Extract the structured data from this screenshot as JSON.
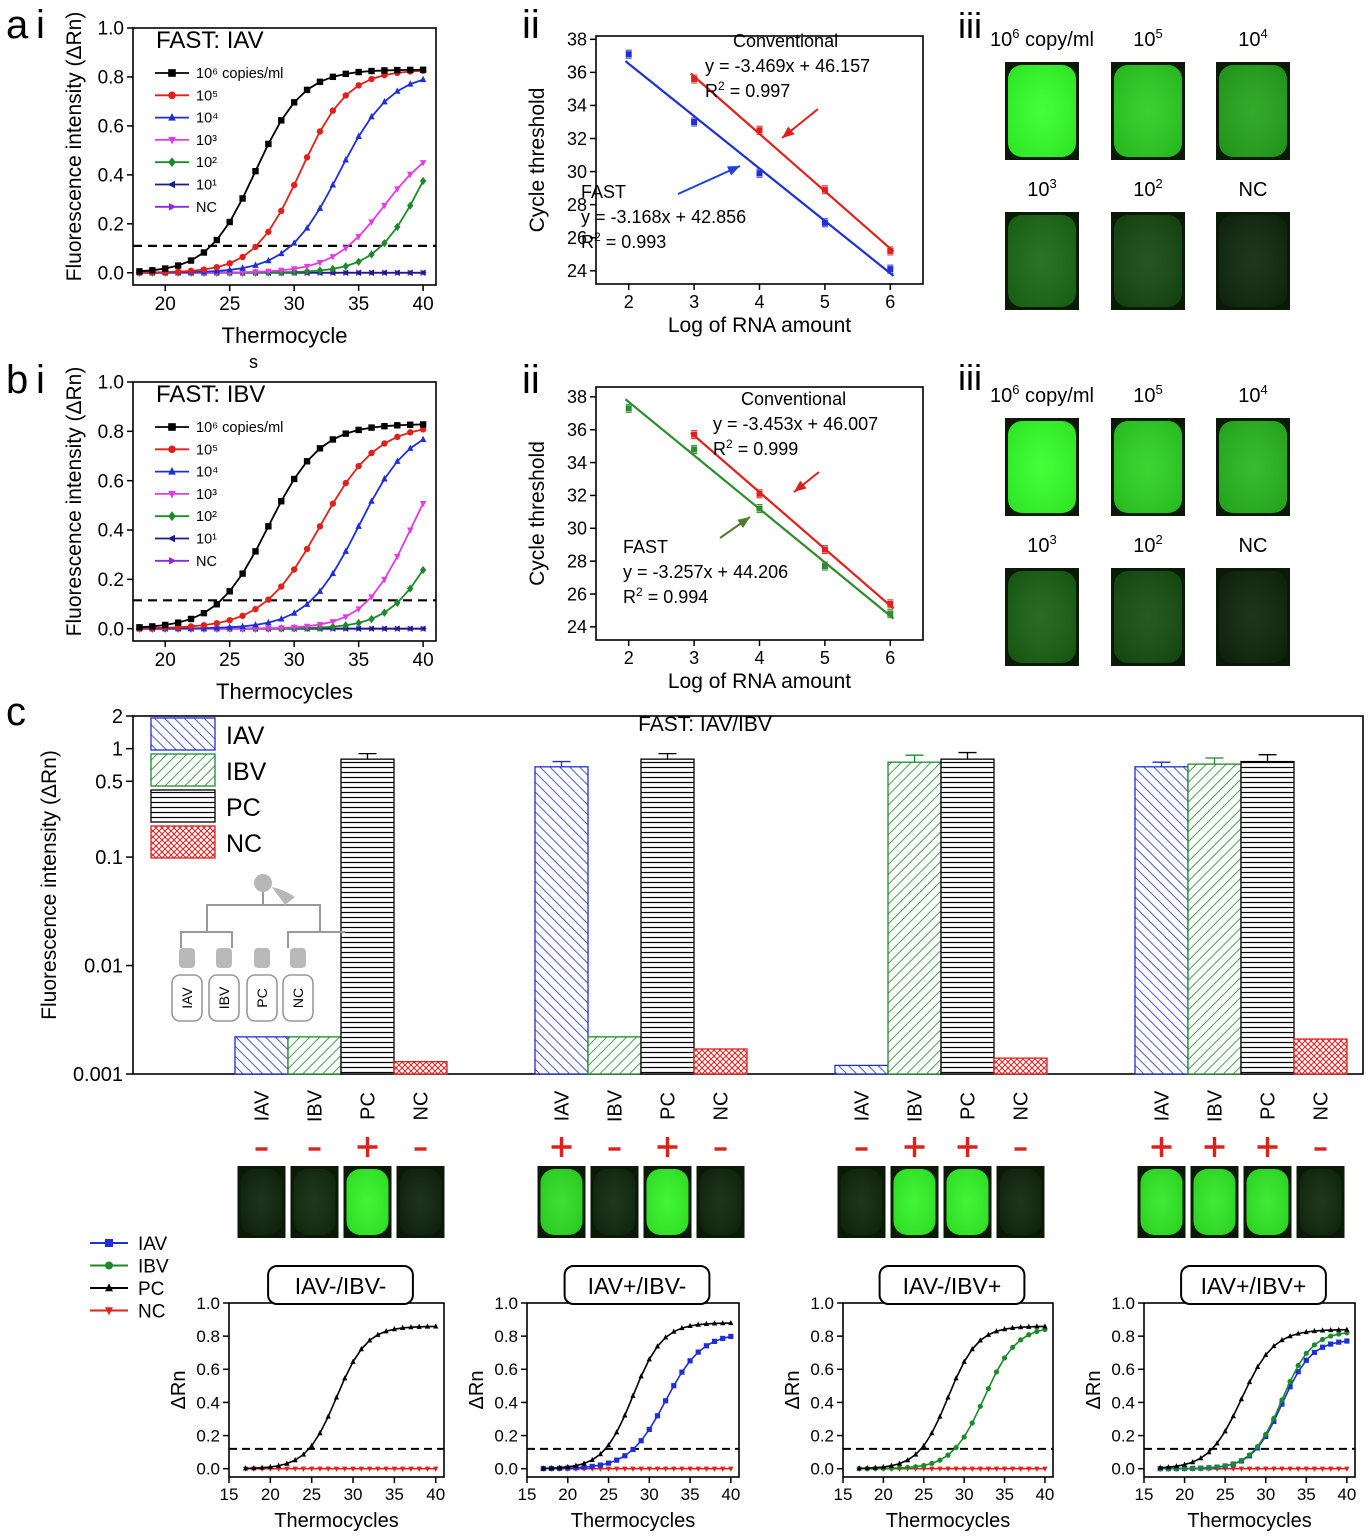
{
  "panel_labels": {
    "a": "a",
    "b": "b",
    "c": "c",
    "i": "i",
    "ii": "ii",
    "iii": "iii"
  },
  "stray_char": "s",
  "colors": {
    "black": "#000000",
    "red": "#e0201b",
    "blue": "#1f2fd6",
    "magenta": "#e23be3",
    "green": "#1d8a2a",
    "navy": "#1c1c8c",
    "purple": "#8a2be2",
    "trend_green": "#2e8b2e",
    "glow": "#39ff2a",
    "hatch_red": "#e0201b",
    "arrow_red": "#e0201b",
    "arrow_blue": "#1f40e0",
    "arrow_olive": "#557a2a"
  },
  "chart_data": [
    {
      "id": "a_i",
      "type": "line",
      "title": "FAST: IAV",
      "xlabel": "Thermocycle",
      "ylabel": "Fluorescence intensity (ΔRn)",
      "xlim": [
        17.5,
        41
      ],
      "ylim": [
        -0.05,
        1.0
      ],
      "xticks": [
        20,
        25,
        30,
        35,
        40
      ],
      "yticks": [
        0.0,
        0.2,
        0.4,
        0.6,
        0.8,
        1.0
      ],
      "ytick_labels": [
        "0.0",
        "0.2",
        "0.4",
        "0.6",
        "0.8",
        "1.0"
      ],
      "threshold": 0.11,
      "series": [
        {
          "name": "10⁶ copies/ml",
          "color": "#000000",
          "marker": "square",
          "max": 0.83,
          "ct": 27.0,
          "k": 0.55
        },
        {
          "name": "10⁵",
          "color": "#e0201b",
          "marker": "circle",
          "max": 0.83,
          "ct": 30.5,
          "k": 0.55
        },
        {
          "name": "10⁴",
          "color": "#1f2fd6",
          "marker": "triangle-up",
          "max": 0.82,
          "ct": 33.5,
          "k": 0.5
        },
        {
          "name": "10³",
          "color": "#e23be3",
          "marker": "triangle-down",
          "max": 0.55,
          "ct": 37.0,
          "k": 0.5
        },
        {
          "name": "10²",
          "color": "#1d8a2a",
          "marker": "diamond",
          "max": 0.75,
          "ct": 40.0,
          "k": 0.55
        },
        {
          "name": "10¹",
          "color": "#1c1c8c",
          "marker": "triangle-left",
          "max": 0.0,
          "ct": 50,
          "k": 0.5
        },
        {
          "name": "NC",
          "color": "#8a2be2",
          "marker": "triangle-right",
          "max": 0.0,
          "ct": 50,
          "k": 0.5
        }
      ]
    },
    {
      "id": "a_ii",
      "type": "scatter",
      "xlabel": "Log of RNA amount",
      "ylabel": "Cycle threshold",
      "xlim": [
        1.5,
        6.5
      ],
      "ylim": [
        23.2,
        38.2
      ],
      "xticks": [
        2,
        3,
        4,
        5,
        6
      ],
      "yticks": [
        24,
        26,
        28,
        30,
        32,
        34,
        36,
        38
      ],
      "series": [
        {
          "name": "Conventional",
          "color": "#e0201b",
          "x": [
            3,
            4,
            5,
            6
          ],
          "y": [
            35.6,
            32.5,
            28.9,
            25.2
          ],
          "fit": [
            -3.469,
            46.157
          ]
        },
        {
          "name": "FAST",
          "color": "#1f2fd6",
          "x": [
            2,
            3,
            4,
            5,
            6
          ],
          "y": [
            37.1,
            33.0,
            29.9,
            26.9,
            24.1
          ],
          "fit": [
            -3.168,
            42.856
          ]
        }
      ],
      "annotations": {
        "conv_name": "Conventional",
        "conv_eq": "y = -3.469x + 46.157",
        "conv_r": "R",
        "conv_r_sup": "2",
        "conv_r_val": " = 0.997",
        "fast_name": "FAST",
        "fast_eq": "y = -3.168x + 42.856",
        "fast_r": "R",
        "fast_r_sup": "2",
        "fast_r_val": " = 0.993"
      }
    },
    {
      "id": "b_i",
      "type": "line",
      "title": "FAST: IBV",
      "xlabel": "Thermocycles",
      "ylabel": "Fluorescence intensity (ΔRn)",
      "xlim": [
        17.5,
        41
      ],
      "ylim": [
        -0.05,
        1.0
      ],
      "xticks": [
        20,
        25,
        30,
        35,
        40
      ],
      "yticks": [
        0.0,
        0.2,
        0.4,
        0.6,
        0.8,
        1.0
      ],
      "ytick_labels": [
        "0.0",
        "0.2",
        "0.4",
        "0.6",
        "0.8",
        "1.0"
      ],
      "threshold": 0.115,
      "series": [
        {
          "name": "10⁶ copies/ml",
          "color": "#000000",
          "marker": "square",
          "max": 0.83,
          "ct": 28.0,
          "k": 0.5
        },
        {
          "name": "10⁵",
          "color": "#e0201b",
          "marker": "circle",
          "max": 0.83,
          "ct": 32.0,
          "k": 0.45
        },
        {
          "name": "10⁴",
          "color": "#1f2fd6",
          "marker": "triangle-up",
          "max": 0.83,
          "ct": 35.0,
          "k": 0.5
        },
        {
          "name": "10³",
          "color": "#e23be3",
          "marker": "triangle-down",
          "max": 0.8,
          "ct": 39.0,
          "k": 0.55
        },
        {
          "name": "10²",
          "color": "#1d8a2a",
          "marker": "diamond",
          "max": 0.65,
          "ct": 41.0,
          "k": 0.55
        },
        {
          "name": "10¹",
          "color": "#1c1c8c",
          "marker": "triangle-left",
          "max": 0.0,
          "ct": 50,
          "k": 0.5
        },
        {
          "name": "NC",
          "color": "#8a2be2",
          "marker": "triangle-right",
          "max": 0.0,
          "ct": 50,
          "k": 0.5
        }
      ]
    },
    {
      "id": "b_ii",
      "type": "scatter",
      "xlabel": "Log of RNA amount",
      "ylabel": "Cycle threshold",
      "xlim": [
        1.5,
        6.5
      ],
      "ylim": [
        23.2,
        38.6
      ],
      "xticks": [
        2,
        3,
        4,
        5,
        6
      ],
      "yticks": [
        24,
        26,
        28,
        30,
        32,
        34,
        36,
        38
      ],
      "series": [
        {
          "name": "Conventional",
          "color": "#e0201b",
          "x": [
            3,
            4,
            5,
            6
          ],
          "y": [
            35.7,
            32.1,
            28.7,
            25.4
          ],
          "fit": [
            -3.453,
            46.007
          ]
        },
        {
          "name": "FAST",
          "color": "#2e8b2e",
          "x": [
            2,
            3,
            4,
            5,
            6
          ],
          "y": [
            37.3,
            34.8,
            31.2,
            27.7,
            24.8
          ],
          "fit": [
            -3.257,
            44.206
          ]
        }
      ],
      "annotations": {
        "conv_name": "Conventional",
        "conv_eq": "y = -3.453x + 46.007",
        "conv_r": "R",
        "conv_r_sup": "2",
        "conv_r_val": " = 0.999",
        "fast_name": "FAST",
        "fast_eq": "y = -3.257x + 44.206",
        "fast_r": "R",
        "fast_r_sup": "2",
        "fast_r_val": " = 0.994"
      }
    },
    {
      "id": "c_bars",
      "type": "bar",
      "title": "FAST: IAV/IBV",
      "ylabel": "Fluorescence intensity (ΔRn)",
      "yscale": "log",
      "ylim": [
        0.001,
        2
      ],
      "yticks": [
        0.001,
        0.01,
        0.1,
        0.5,
        1,
        2
      ],
      "ytick_labels": [
        "0.001",
        "0.01",
        "0.1",
        "0.5",
        "1",
        "2"
      ],
      "legend": [
        "IAV",
        "IBV",
        "PC",
        "NC"
      ],
      "categories": [
        "IAV",
        "IBV",
        "PC",
        "NC"
      ],
      "groups": [
        {
          "values": [
            0.0022,
            0.0022,
            0.8,
            0.0013
          ],
          "errors": [
            0,
            0,
            0.1,
            0
          ],
          "signs": [
            "-",
            "-",
            "+",
            "-"
          ],
          "glow": [
            0.03,
            0.06,
            0.95,
            0.03
          ]
        },
        {
          "values": [
            0.68,
            0.0022,
            0.8,
            0.0017
          ],
          "errors": [
            0.08,
            0,
            0.1,
            0
          ],
          "signs": [
            "+",
            "-",
            "+",
            "-"
          ],
          "glow": [
            0.85,
            0.05,
            0.95,
            0.04
          ]
        },
        {
          "values": [
            0.0012,
            0.75,
            0.8,
            0.0014
          ],
          "errors": [
            0,
            0.12,
            0.12,
            0
          ],
          "signs": [
            "-",
            "+",
            "+",
            "-"
          ],
          "glow": [
            0.04,
            0.95,
            0.95,
            0.04
          ]
        },
        {
          "values": [
            0.68,
            0.72,
            0.76,
            0.0021
          ],
          "errors": [
            0.07,
            0.1,
            0.12,
            0
          ],
          "signs": [
            "+",
            "+",
            "+",
            "-"
          ],
          "glow": [
            0.9,
            0.9,
            0.9,
            0.05
          ]
        }
      ]
    },
    {
      "id": "c_small",
      "type": "line",
      "xlabel": "Thermocycles",
      "ylabel": "ΔRn",
      "xlim": [
        15,
        41
      ],
      "ylim": [
        -0.05,
        1.0
      ],
      "xticks": [
        15,
        20,
        25,
        30,
        35,
        40
      ],
      "yticks": [
        0.0,
        0.2,
        0.4,
        0.6,
        0.8,
        1.0
      ],
      "ytick_labels": [
        "0.0",
        "0.2",
        "0.4",
        "0.6",
        "0.8",
        "1.0"
      ],
      "threshold": 0.12,
      "legend": [
        {
          "name": "IAV",
          "color": "#1f2fd6",
          "marker": "square"
        },
        {
          "name": "IBV",
          "color": "#1d8a2a",
          "marker": "circle"
        },
        {
          "name": "PC",
          "color": "#000000",
          "marker": "triangle-up"
        },
        {
          "name": "NC",
          "color": "#e0201b",
          "marker": "triangle-down"
        }
      ],
      "plots": [
        {
          "label": "IAV-/IBV-",
          "curves": [
            {
              "name": "PC",
              "max": 0.86,
              "ct": 28.0,
              "k": 0.55
            }
          ]
        },
        {
          "label": "IAV+/IBV-",
          "curves": [
            {
              "name": "PC",
              "max": 0.88,
              "ct": 28.0,
              "k": 0.55
            },
            {
              "name": "IAV",
              "max": 0.82,
              "ct": 32.0,
              "k": 0.45
            }
          ]
        },
        {
          "label": "IAV-/IBV+",
          "curves": [
            {
              "name": "PC",
              "max": 0.86,
              "ct": 28.0,
              "k": 0.55
            },
            {
              "name": "IBV",
              "max": 0.86,
              "ct": 32.5,
              "k": 0.5
            }
          ]
        },
        {
          "label": "IAV+/IBV+",
          "curves": [
            {
              "name": "PC",
              "max": 0.84,
              "ct": 27.0,
              "k": 0.5
            },
            {
              "name": "IBV",
              "max": 0.83,
              "ct": 32.0,
              "k": 0.55
            },
            {
              "name": "IAV",
              "max": 0.78,
              "ct": 32.0,
              "k": 0.55
            }
          ]
        }
      ]
    }
  ],
  "gel_panels": [
    {
      "id": "a_iii",
      "labels": [
        "10⁶ copy/ml",
        "10⁵",
        "10⁴",
        "10³",
        "10²",
        "NC"
      ],
      "glow": [
        1.0,
        0.78,
        0.6,
        0.34,
        0.2,
        0.05
      ]
    },
    {
      "id": "b_iii",
      "labels": [
        "10⁶ copy/ml",
        "10⁵",
        "10⁴",
        "10³",
        "10²",
        "NC"
      ],
      "glow": [
        1.0,
        0.8,
        0.68,
        0.3,
        0.22,
        0.04
      ]
    }
  ],
  "chip_labels": [
    "IAV",
    "IBV",
    "PC",
    "NC"
  ]
}
